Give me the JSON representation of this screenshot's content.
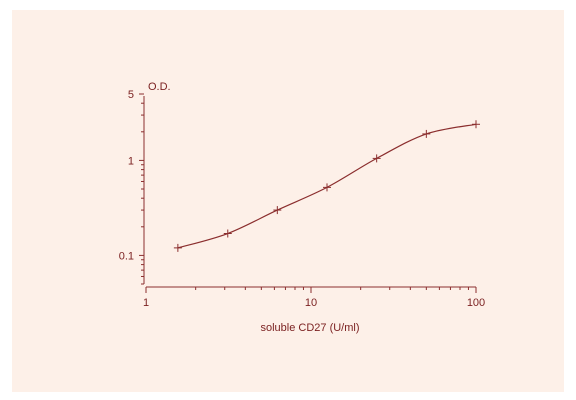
{
  "chart_data": {
    "type": "line",
    "title": "",
    "xlabel": "soluble CD27 (U/ml)",
    "ylabel": "O.D.",
    "x_scale": "log",
    "y_scale": "log",
    "xlim": [
      1,
      100
    ],
    "ylim": [
      0.05,
      5
    ],
    "x_tick_labels": [
      {
        "value": 1,
        "label": "1"
      },
      {
        "value": 10,
        "label": "10"
      },
      {
        "value": 100,
        "label": "100"
      }
    ],
    "y_tick_labels": [
      {
        "value": 0.1,
        "label": "0.1"
      },
      {
        "value": 1,
        "label": "1"
      },
      {
        "value": 5,
        "label": "5"
      }
    ],
    "grid": false,
    "x": [
      1.56,
      3.13,
      6.25,
      12.5,
      25,
      50,
      100
    ],
    "values": [
      0.12,
      0.17,
      0.3,
      0.52,
      1.05,
      1.9,
      2.4
    ],
    "marker": "plus",
    "color": "#8b2e2e",
    "background": "#fdf0e8"
  }
}
